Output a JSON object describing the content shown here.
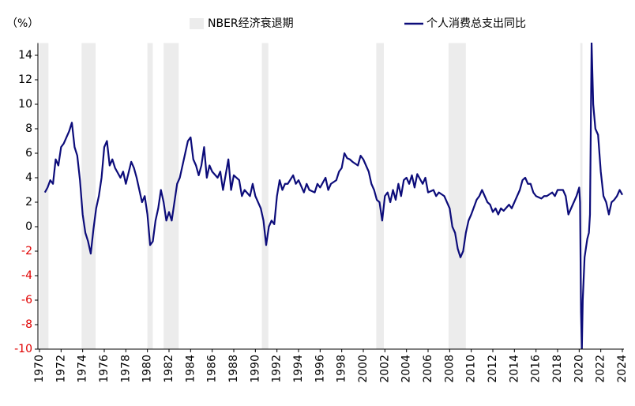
{
  "chart_data": {
    "type": "line",
    "unit_label": "（%）",
    "recession_label": "NBER经济衰退期",
    "recession_color": "#ececec",
    "recessions": [
      [
        1970.0,
        1970.83
      ],
      [
        1973.9,
        1975.2
      ],
      [
        1980.0,
        1980.5
      ],
      [
        1981.5,
        1982.9
      ],
      [
        1990.6,
        1991.2
      ],
      [
        2001.2,
        2001.9
      ],
      [
        2007.9,
        2009.5
      ],
      [
        2020.1,
        2020.3
      ]
    ],
    "x": [
      1970.5,
      1970.75,
      1971,
      1971.25,
      1971.5,
      1971.75,
      1972,
      1972.25,
      1972.5,
      1972.75,
      1973,
      1973.25,
      1973.5,
      1973.75,
      1974,
      1974.25,
      1974.5,
      1974.75,
      1975,
      1975.25,
      1975.5,
      1975.75,
      1976,
      1976.25,
      1976.5,
      1976.75,
      1977,
      1977.5,
      1977.75,
      1978,
      1978.5,
      1978.75,
      1979,
      1979.5,
      1979.75,
      1980,
      1980.25,
      1980.5,
      1980.75,
      1981,
      1981.25,
      1981.5,
      1981.75,
      1982,
      1982.25,
      1982.5,
      1982.75,
      1983,
      1983.5,
      1983.75,
      1984,
      1984.25,
      1984.5,
      1984.75,
      1985,
      1985.25,
      1985.5,
      1985.75,
      1986,
      1986.5,
      1986.75,
      1987,
      1987.5,
      1987.75,
      1988,
      1988.5,
      1988.75,
      1989,
      1989.5,
      1989.75,
      1990,
      1990.5,
      1990.75,
      1991,
      1991.25,
      1991.5,
      1991.75,
      1992,
      1992.25,
      1992.5,
      1992.75,
      1993,
      1993.5,
      1993.75,
      1994,
      1994.5,
      1994.75,
      1995,
      1995.5,
      1995.75,
      1996,
      1996.5,
      1996.75,
      1997,
      1997.5,
      1997.75,
      1998,
      1998.25,
      1998.5,
      1998.75,
      1999,
      1999.5,
      1999.75,
      2000,
      2000.5,
      2000.75,
      2001,
      2001.25,
      2001.5,
      2001.75,
      2002,
      2002.25,
      2002.5,
      2002.75,
      2003,
      2003.25,
      2003.5,
      2003.75,
      2004,
      2004.25,
      2004.5,
      2004.75,
      2005,
      2005.5,
      2005.75,
      2006,
      2006.5,
      2006.75,
      2007,
      2007.5,
      2007.75,
      2008,
      2008.25,
      2008.5,
      2008.75,
      2009,
      2009.25,
      2009.5,
      2009.75,
      2010,
      2010.5,
      2010.75,
      2011,
      2011.25,
      2011.5,
      2011.75,
      2012,
      2012.25,
      2012.5,
      2012.75,
      2013,
      2013.5,
      2013.75,
      2014,
      2014.5,
      2014.75,
      2015,
      2015.25,
      2015.5,
      2015.75,
      2016,
      2016.5,
      2016.75,
      2017,
      2017.5,
      2017.75,
      2018,
      2018.5,
      2018.75,
      2019,
      2019.25,
      2019.5,
      2019.75,
      2020,
      2020.08,
      2020.17,
      2020.25,
      2020.33,
      2020.5,
      2020.75,
      2020.9,
      2021,
      2021.15,
      2021.3,
      2021.5,
      2021.75,
      2022,
      2022.25,
      2022.5,
      2022.75,
      2023,
      2023.25,
      2023.5,
      2023.75,
      2024
    ],
    "series": [
      {
        "name": "个人消费总支出同比",
        "color": "#0c0c7a",
        "values": [
          2.8,
          3.2,
          3.8,
          3.5,
          5.5,
          5.0,
          6.5,
          6.8,
          7.3,
          7.8,
          8.5,
          6.5,
          5.8,
          3.8,
          1.0,
          -0.5,
          -1.2,
          -2.2,
          -0.2,
          1.5,
          2.5,
          4.0,
          6.5,
          7.0,
          5.0,
          5.5,
          4.8,
          4.0,
          4.5,
          3.5,
          5.3,
          4.8,
          4.0,
          2.0,
          2.5,
          1.0,
          -1.5,
          -1.2,
          0.5,
          1.5,
          3.0,
          2.0,
          0.5,
          1.2,
          0.5,
          2.0,
          3.5,
          4.0,
          6.0,
          7.0,
          7.3,
          5.5,
          5.0,
          4.2,
          5.0,
          6.5,
          4.0,
          5.0,
          4.5,
          4.0,
          4.5,
          3.0,
          5.5,
          3.0,
          4.2,
          3.8,
          2.5,
          3.0,
          2.5,
          3.5,
          2.5,
          1.5,
          0.5,
          -1.5,
          0.0,
          0.5,
          0.2,
          2.5,
          3.8,
          3.0,
          3.5,
          3.5,
          4.2,
          3.5,
          3.8,
          2.8,
          3.5,
          3.0,
          2.8,
          3.5,
          3.2,
          4.0,
          3.0,
          3.5,
          3.8,
          4.5,
          4.8,
          6.0,
          5.6,
          5.5,
          5.3,
          5.0,
          5.8,
          5.5,
          4.5,
          3.5,
          3.0,
          2.2,
          2.0,
          0.5,
          2.5,
          2.8,
          2.0,
          3.0,
          2.2,
          3.5,
          2.5,
          3.8,
          4.0,
          3.5,
          4.2,
          3.2,
          4.3,
          3.5,
          4.0,
          2.8,
          3.0,
          2.5,
          2.8,
          2.5,
          2.0,
          1.5,
          0.0,
          -0.5,
          -1.8,
          -2.5,
          -2.0,
          -0.5,
          0.5,
          1.0,
          2.2,
          2.5,
          3.0,
          2.5,
          2.0,
          1.8,
          1.2,
          1.5,
          1.0,
          1.5,
          1.3,
          1.8,
          1.5,
          2.0,
          3.0,
          3.8,
          4.0,
          3.5,
          3.5,
          2.8,
          2.5,
          2.3,
          2.5,
          2.5,
          2.8,
          2.5,
          3.0,
          3.0,
          2.5,
          1.0,
          1.5,
          2.0,
          2.5,
          3.2,
          2.0,
          -7.0,
          -10,
          -6.0,
          -2.5,
          -1.0,
          -0.5,
          1.0,
          15,
          10.0,
          8.0,
          7.5,
          4.5,
          2.5,
          2.0,
          1.0,
          2.0,
          2.2,
          2.5,
          3.0,
          2.6
        ]
      }
    ],
    "xlim": [
      1970,
      2024
    ],
    "xticks": [
      1970,
      1972,
      1974,
      1976,
      1978,
      1980,
      1982,
      1984,
      1986,
      1988,
      1990,
      1992,
      1994,
      1996,
      1998,
      2000,
      2002,
      2004,
      2006,
      2008,
      2010,
      2012,
      2014,
      2016,
      2018,
      2020,
      2022,
      2024
    ],
    "ylim": [
      -10,
      15
    ],
    "yticks": [
      -10,
      -8,
      -6,
      -4,
      -2,
      0,
      2,
      4,
      6,
      8,
      10,
      12,
      14
    ],
    "negative_tick_color": "#e00000"
  }
}
